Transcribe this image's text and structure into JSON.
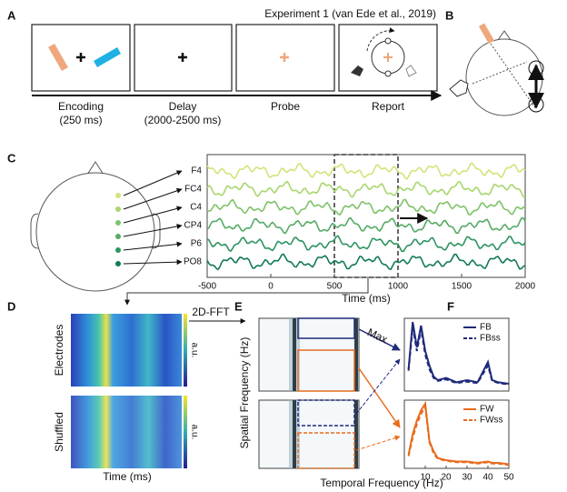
{
  "panels": {
    "a": {
      "letter": "A",
      "title": "Experiment 1 (van Ede et al., 2019)",
      "stages": [
        {
          "name": "Encoding",
          "detail": "(250 ms)"
        },
        {
          "name": "Delay",
          "detail": "(2000-2500 ms)"
        },
        {
          "name": "Probe"
        },
        {
          "name": "Report"
        }
      ]
    },
    "b": {
      "letter": "B"
    },
    "c": {
      "letter": "C"
    },
    "d": {
      "letter": "D",
      "rows": [
        "Electrodes",
        "Shuffled"
      ],
      "colorbar": "a.u.",
      "x_label": "Time (ms)",
      "transform": "2D-FFT"
    },
    "e": {
      "letter": "E",
      "y_label": "Spatial Frequency (Hz)",
      "x_label": "Temporal Frequency (Hz)",
      "arrow": "Max"
    },
    "f": {
      "letter": "F"
    }
  },
  "chart_data": [
    {
      "type": "line",
      "x_label": "Time (ms)",
      "xlim": [
        -500,
        2000
      ],
      "xticks": [
        -500,
        0,
        500,
        1000,
        1500,
        2000
      ],
      "channels": [
        "F4",
        "FC4",
        "C4",
        "CP4",
        "P6",
        "PO8"
      ]
    },
    {
      "type": "line",
      "x": [
        2,
        4,
        6,
        8,
        10,
        12,
        14,
        16,
        20,
        25,
        30,
        35,
        40,
        42,
        45,
        50
      ],
      "xlim": [
        0,
        50
      ],
      "ylim": [
        0,
        1
      ],
      "series": [
        {
          "name": "FB",
          "color": "#1f2a7a",
          "style": "solid",
          "values": [
            0.3,
            0.95,
            0.6,
            0.9,
            0.55,
            0.35,
            0.2,
            0.15,
            0.18,
            0.12,
            0.15,
            0.12,
            0.4,
            0.15,
            0.12,
            0.1
          ]
        },
        {
          "name": "FBss",
          "color": "#1f2a7a",
          "style": "dashed",
          "values": [
            0.28,
            0.88,
            0.55,
            0.85,
            0.5,
            0.3,
            0.18,
            0.14,
            0.16,
            0.11,
            0.13,
            0.11,
            0.35,
            0.14,
            0.11,
            0.09
          ]
        }
      ]
    },
    {
      "type": "line",
      "x": [
        2,
        4,
        6,
        8,
        10,
        12,
        14,
        16,
        20,
        25,
        30,
        35,
        40,
        42,
        45,
        50
      ],
      "xlim": [
        0,
        50
      ],
      "ylim": [
        0,
        1
      ],
      "xticks": [
        10,
        20,
        30,
        40,
        50
      ],
      "series": [
        {
          "name": "FW",
          "color": "#e86b1e",
          "style": "solid",
          "values": [
            0.2,
            0.5,
            0.7,
            0.85,
            0.95,
            0.4,
            0.25,
            0.15,
            0.12,
            0.1,
            0.1,
            0.08,
            0.1,
            0.08,
            0.08,
            0.06
          ]
        },
        {
          "name": "FWss",
          "color": "#e86b1e",
          "style": "dashed",
          "values": [
            0.18,
            0.45,
            0.65,
            0.8,
            0.9,
            0.38,
            0.22,
            0.14,
            0.11,
            0.09,
            0.09,
            0.07,
            0.09,
            0.07,
            0.07,
            0.05
          ]
        }
      ]
    }
  ]
}
